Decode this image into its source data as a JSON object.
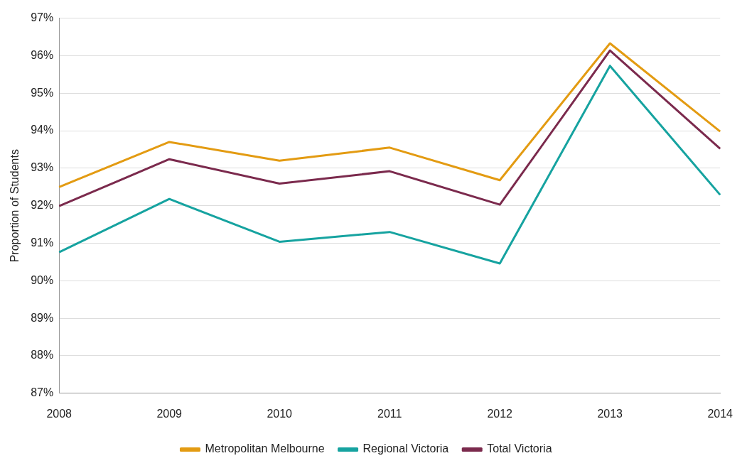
{
  "chart_data": {
    "type": "line",
    "ylabel": "Proportion of Students",
    "categories": [
      "2008",
      "2009",
      "2010",
      "2011",
      "2012",
      "2013",
      "2014"
    ],
    "series": [
      {
        "name": "Metropolitan Melbourne",
        "color": "#e39b12",
        "values": [
          92.5,
          93.7,
          93.2,
          93.55,
          92.68,
          96.33,
          93.98
        ]
      },
      {
        "name": "Regional Victoria",
        "color": "#16a3a0",
        "values": [
          90.76,
          92.18,
          91.04,
          91.3,
          90.46,
          95.73,
          92.29
        ]
      },
      {
        "name": "Total Victoria",
        "color": "#7b2a4d",
        "values": [
          91.99,
          93.24,
          92.59,
          92.92,
          92.03,
          96.14,
          93.52
        ]
      }
    ],
    "ylim": [
      87,
      97
    ],
    "yticks": [
      {
        "value": 87,
        "label": "87%"
      },
      {
        "value": 88,
        "label": "88%"
      },
      {
        "value": 89,
        "label": "89%"
      },
      {
        "value": 90,
        "label": "90%"
      },
      {
        "value": 91,
        "label": "91%"
      },
      {
        "value": 92,
        "label": "92%"
      },
      {
        "value": 93,
        "label": "93%"
      },
      {
        "value": 94,
        "label": "94%"
      },
      {
        "value": 95,
        "label": "95%"
      },
      {
        "value": 96,
        "label": "96%"
      },
      {
        "value": 97,
        "label": "97%"
      }
    ],
    "grid": "y",
    "legend": "bottom",
    "marker": "none",
    "line_style": "solid"
  }
}
